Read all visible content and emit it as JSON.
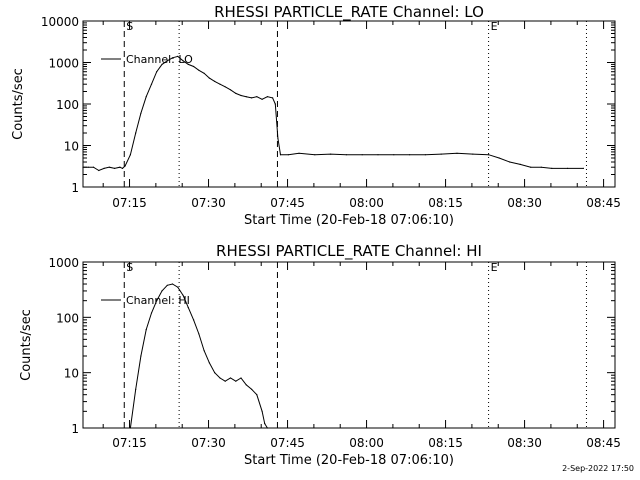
{
  "footer_date": "2-Sep-2022 17:50",
  "chart_data": [
    {
      "type": "line",
      "title": "RHESSI PARTICLE_RATE Channel: LO",
      "xlabel": "Start Time (20-Feb-18 07:06:10)",
      "ylabel": "Counts/sec",
      "y_scale": "log",
      "ylim": [
        1,
        10000
      ],
      "y_ticks": [
        1,
        10,
        100,
        1000,
        10000
      ],
      "y_tick_labels": [
        "1",
        "10",
        "100",
        "1000",
        "10000"
      ],
      "x_range_minutes": [
        0,
        101
      ],
      "x_ticks": [
        "07:15",
        "07:30",
        "07:45",
        "08:00",
        "08:15",
        "08:30",
        "08:45"
      ],
      "legend": "Channel: LO",
      "markers": [
        {
          "label": "S",
          "time": "07:14:00",
          "style": "dashed"
        },
        {
          "label": "",
          "time": "07:24:25",
          "style": "dotted"
        },
        {
          "label": "",
          "time": "07:43:05",
          "style": "dashed"
        },
        {
          "label": "E",
          "time": "08:23:10",
          "style": "dotted"
        },
        {
          "label": "",
          "time": "08:41:45",
          "style": "dotted"
        }
      ],
      "series": [
        {
          "x": [
            "07:06:10",
            "07:07:10",
            "07:08:10",
            "07:09:10",
            "07:10:10",
            "07:11:10",
            "07:12:10",
            "07:13:10",
            "07:13:40",
            "07:14:10",
            "07:15:10",
            "07:16:10",
            "07:17:10",
            "07:18:10",
            "07:19:10",
            "07:20:10",
            "07:21:10",
            "07:22:10",
            "07:23:10",
            "07:24:10",
            "07:25:10",
            "07:26:10",
            "07:27:10",
            "07:28:10",
            "07:29:10",
            "07:30:10",
            "07:31:10",
            "07:32:10",
            "07:33:10",
            "07:34:10",
            "07:35:10",
            "07:36:10",
            "07:37:10",
            "07:38:10",
            "07:39:10",
            "07:40:10",
            "07:41:10",
            "07:42:10",
            "07:42:40",
            "07:43:10",
            "07:43:40",
            "07:45:10",
            "07:47:10",
            "07:50:10",
            "07:53:10",
            "07:56:10",
            "07:59:10",
            "08:02:10",
            "08:05:10",
            "08:08:10",
            "08:11:10",
            "08:14:10",
            "08:17:10",
            "08:20:10",
            "08:23:10",
            "08:25:10",
            "08:27:10",
            "08:29:10",
            "08:31:10",
            "08:33:10",
            "08:35:10",
            "08:38:10",
            "08:41:10"
          ],
          "y": [
            3,
            3,
            3,
            2.5,
            2.8,
            3,
            2.8,
            3,
            2.8,
            3.2,
            6,
            20,
            60,
            150,
            300,
            600,
            900,
            1100,
            1300,
            1400,
            1100,
            900,
            800,
            650,
            550,
            420,
            350,
            300,
            260,
            220,
            180,
            160,
            150,
            140,
            150,
            130,
            150,
            140,
            100,
            15,
            6,
            6,
            6.5,
            6,
            6.2,
            6,
            6,
            6,
            6,
            6,
            6,
            6.2,
            6.5,
            6.2,
            6,
            5,
            4,
            3.5,
            3,
            3,
            2.8,
            2.8,
            2.8
          ]
        }
      ]
    },
    {
      "type": "line",
      "title": "RHESSI PARTICLE_RATE Channel: HI",
      "xlabel": "Start Time (20-Feb-18 07:06:10)",
      "ylabel": "Counts/sec",
      "y_scale": "log",
      "ylim": [
        1,
        1000
      ],
      "y_ticks": [
        1,
        10,
        100,
        1000
      ],
      "y_tick_labels": [
        "1",
        "10",
        "100",
        "1000"
      ],
      "x_range_minutes": [
        0,
        101
      ],
      "x_ticks": [
        "07:15",
        "07:30",
        "07:45",
        "08:00",
        "08:15",
        "08:30",
        "08:45"
      ],
      "legend": "Channel: HI",
      "markers": [
        {
          "label": "S",
          "time": "07:14:00",
          "style": "dashed"
        },
        {
          "label": "",
          "time": "07:24:25",
          "style": "dotted"
        },
        {
          "label": "",
          "time": "07:43:05",
          "style": "dashed"
        },
        {
          "label": "E",
          "time": "08:23:10",
          "style": "dotted"
        },
        {
          "label": "",
          "time": "08:41:45",
          "style": "dotted"
        }
      ],
      "series": [
        {
          "x": [
            "07:15:10",
            "07:16:10",
            "07:17:10",
            "07:18:10",
            "07:19:10",
            "07:20:10",
            "07:21:10",
            "07:22:10",
            "07:23:10",
            "07:24:10",
            "07:25:10",
            "07:26:10",
            "07:27:10",
            "07:28:10",
            "07:29:10",
            "07:30:10",
            "07:31:10",
            "07:32:10",
            "07:33:10",
            "07:34:10",
            "07:35:10",
            "07:36:10",
            "07:37:10",
            "07:38:10",
            "07:39:10",
            "07:40:10",
            "07:40:40",
            "07:41:10"
          ],
          "y": [
            1,
            5,
            20,
            60,
            120,
            200,
            300,
            380,
            400,
            350,
            250,
            150,
            90,
            50,
            25,
            15,
            10,
            8,
            7,
            8,
            7,
            8,
            6,
            5,
            4,
            2,
            1.2,
            1
          ]
        }
      ]
    }
  ]
}
